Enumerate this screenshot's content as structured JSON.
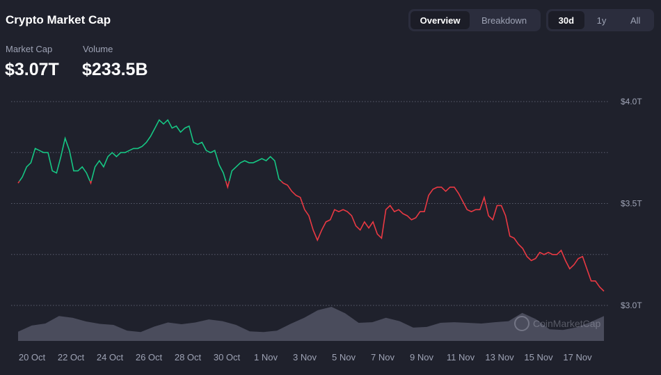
{
  "header": {
    "title": "Crypto Market Cap"
  },
  "stats": [
    {
      "label": "Market Cap",
      "value": "$3.07T"
    },
    {
      "label": "Volume",
      "value": "$233.5B"
    }
  ],
  "view_tabs": [
    {
      "label": "Overview",
      "active": true
    },
    {
      "label": "Breakdown",
      "active": false
    }
  ],
  "range_tabs": [
    {
      "label": "30d",
      "active": true
    },
    {
      "label": "1y",
      "active": false
    },
    {
      "label": "All",
      "active": false
    }
  ],
  "watermark": "CoinMarketCap",
  "colors": {
    "up": "#16c784",
    "down": "#ea3943",
    "volume": "#4a4c5c",
    "grid": "#5a5d6e"
  },
  "chart_data": {
    "type": "line",
    "x_tick_labels": [
      "20 Oct",
      "22 Oct",
      "24 Oct",
      "26 Oct",
      "28 Oct",
      "30 Oct",
      "1 Nov",
      "3 Nov",
      "5 Nov",
      "7 Nov",
      "9 Nov",
      "11 Nov",
      "13 Nov",
      "15 Nov",
      "17 Nov"
    ],
    "y_tick_labels": [
      "$3.0T",
      "$3.5T",
      "$4.0T"
    ],
    "ylim": [
      3.0,
      4.0
    ],
    "y_unit": "T USD",
    "grid": true,
    "baseline_value": 3.61,
    "market_cap": [
      3.6,
      3.63,
      3.68,
      3.7,
      3.77,
      3.76,
      3.75,
      3.75,
      3.66,
      3.65,
      3.73,
      3.82,
      3.76,
      3.66,
      3.66,
      3.68,
      3.65,
      3.6,
      3.68,
      3.71,
      3.68,
      3.73,
      3.75,
      3.73,
      3.75,
      3.75,
      3.76,
      3.77,
      3.77,
      3.78,
      3.8,
      3.83,
      3.87,
      3.91,
      3.89,
      3.91,
      3.87,
      3.88,
      3.85,
      3.87,
      3.88,
      3.8,
      3.79,
      3.8,
      3.76,
      3.75,
      3.76,
      3.69,
      3.65,
      3.58,
      3.66,
      3.68,
      3.7,
      3.71,
      3.7,
      3.7,
      3.71,
      3.72,
      3.71,
      3.73,
      3.71,
      3.62,
      3.6,
      3.59,
      3.56,
      3.54,
      3.53,
      3.47,
      3.44,
      3.37,
      3.32,
      3.37,
      3.41,
      3.42,
      3.47,
      3.46,
      3.47,
      3.46,
      3.44,
      3.39,
      3.37,
      3.41,
      3.38,
      3.41,
      3.35,
      3.33,
      3.47,
      3.49,
      3.46,
      3.47,
      3.45,
      3.44,
      3.42,
      3.43,
      3.46,
      3.46,
      3.54,
      3.57,
      3.58,
      3.58,
      3.56,
      3.58,
      3.58,
      3.55,
      3.51,
      3.47,
      3.46,
      3.47,
      3.47,
      3.53,
      3.44,
      3.42,
      3.49,
      3.49,
      3.44,
      3.34,
      3.33,
      3.3,
      3.28,
      3.24,
      3.22,
      3.23,
      3.26,
      3.25,
      3.26,
      3.25,
      3.25,
      3.27,
      3.22,
      3.18,
      3.2,
      3.23,
      3.24,
      3.18,
      3.12,
      3.12,
      3.09,
      3.07
    ],
    "volume_relative": [
      0.27,
      0.45,
      0.51,
      0.73,
      0.68,
      0.57,
      0.5,
      0.47,
      0.3,
      0.26,
      0.42,
      0.54,
      0.49,
      0.54,
      0.63,
      0.58,
      0.47,
      0.28,
      0.26,
      0.3,
      0.5,
      0.68,
      0.9,
      1.0,
      0.81,
      0.53,
      0.55,
      0.68,
      0.58,
      0.39,
      0.41,
      0.53,
      0.55,
      0.53,
      0.51,
      0.55,
      0.58,
      0.82,
      0.64,
      0.34,
      0.32,
      0.4,
      0.55,
      0.73
    ]
  }
}
